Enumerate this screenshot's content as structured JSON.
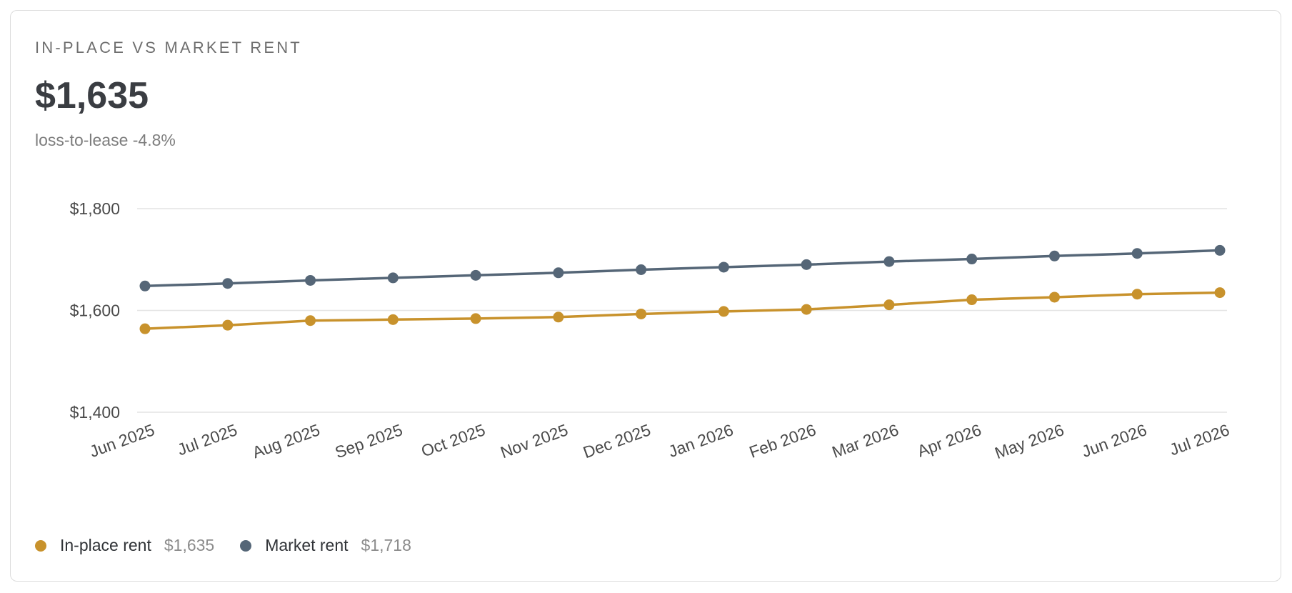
{
  "card": {
    "eyebrow": "IN-PLACE VS MARKET RENT",
    "headline_value": "$1,635",
    "subtext": "loss-to-lease -4.8%"
  },
  "legend": [
    {
      "name": "In-place rent",
      "value": "$1,635",
      "color": "#c8922c"
    },
    {
      "name": "Market rent",
      "value": "$1,718",
      "color": "#556677"
    }
  ],
  "chart_data": {
    "type": "line",
    "x": [
      "Jun 2025",
      "Jul 2025",
      "Aug 2025",
      "Sep 2025",
      "Oct 2025",
      "Nov 2025",
      "Dec 2025",
      "Jan 2026",
      "Feb 2026",
      "Mar 2026",
      "Apr 2026",
      "May 2026",
      "Jun 2026",
      "Jul 2026"
    ],
    "series": [
      {
        "name": "In-place rent",
        "color": "#c8922c",
        "values": [
          1564,
          1571,
          1580,
          1582,
          1584,
          1587,
          1593,
          1598,
          1602,
          1611,
          1621,
          1626,
          1632,
          1635
        ]
      },
      {
        "name": "Market rent",
        "color": "#556677",
        "values": [
          1648,
          1653,
          1659,
          1664,
          1669,
          1674,
          1680,
          1685,
          1690,
          1696,
          1701,
          1707,
          1712,
          1718
        ]
      }
    ],
    "ylim": [
      1400,
      1800
    ],
    "yticks": [
      1400,
      1600,
      1800
    ],
    "ytick_labels": [
      "$1,400",
      "$1,600",
      "$1,800"
    ],
    "grid": true,
    "legend_position": "bottom-left"
  }
}
